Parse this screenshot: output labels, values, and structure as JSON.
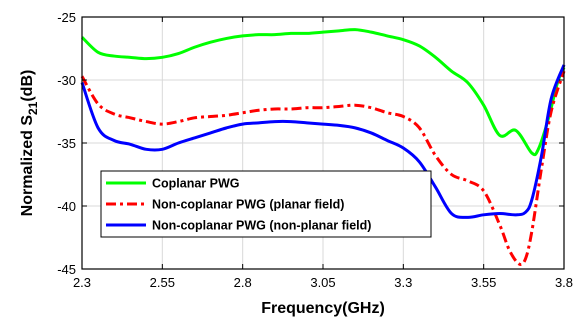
{
  "chart_data": {
    "type": "line",
    "title": "",
    "xlabel": "Frequency(GHz)",
    "ylabel": {
      "main": "Normalized S",
      "sub": "21",
      "tail": "(dB)"
    },
    "xlim": [
      2.3,
      3.8
    ],
    "ylim": [
      -45,
      -25
    ],
    "xticks": [
      "2.3",
      "2.55",
      "2.8",
      "3.05",
      "3.3",
      "3.55",
      "3.8"
    ],
    "yticks": [
      "-25",
      "-30",
      "-35",
      "-40",
      "-45"
    ],
    "grid": true,
    "legend_position": "lower-left",
    "series": [
      {
        "name": "Coplanar PWG",
        "color": "#00ff00",
        "style": "solid",
        "x": [
          2.3,
          2.35,
          2.4,
          2.45,
          2.5,
          2.55,
          2.6,
          2.65,
          2.7,
          2.75,
          2.8,
          2.85,
          2.9,
          2.95,
          3.0,
          3.05,
          3.1,
          3.15,
          3.2,
          3.25,
          3.3,
          3.35,
          3.4,
          3.45,
          3.5,
          3.55,
          3.6,
          3.65,
          3.7,
          3.72,
          3.75,
          3.78,
          3.8
        ],
        "y": [
          -26.6,
          -27.8,
          -28.1,
          -28.2,
          -28.3,
          -28.2,
          -27.9,
          -27.4,
          -27.0,
          -26.7,
          -26.5,
          -26.4,
          -26.4,
          -26.3,
          -26.3,
          -26.2,
          -26.1,
          -26.0,
          -26.2,
          -26.5,
          -26.8,
          -27.3,
          -28.2,
          -29.3,
          -30.2,
          -32.0,
          -34.4,
          -34.0,
          -35.8,
          -35.5,
          -33.2,
          -30.2,
          -29.0
        ]
      },
      {
        "name": "Non-coplanar PWG (planar field)",
        "color": "#ff0000",
        "style": "dashdot",
        "x": [
          2.3,
          2.35,
          2.4,
          2.45,
          2.5,
          2.55,
          2.6,
          2.65,
          2.7,
          2.75,
          2.8,
          2.85,
          2.9,
          2.95,
          3.0,
          3.05,
          3.1,
          3.15,
          3.2,
          3.25,
          3.3,
          3.35,
          3.4,
          3.45,
          3.5,
          3.55,
          3.6,
          3.63,
          3.66,
          3.68,
          3.7,
          3.73,
          3.76,
          3.8
        ],
        "y": [
          -29.7,
          -31.9,
          -32.7,
          -33.0,
          -33.3,
          -33.5,
          -33.3,
          -33.0,
          -32.9,
          -32.8,
          -32.6,
          -32.4,
          -32.3,
          -32.3,
          -32.2,
          -32.2,
          -32.1,
          -32.0,
          -32.2,
          -32.6,
          -32.9,
          -33.8,
          -36.0,
          -37.5,
          -38.0,
          -38.8,
          -41.5,
          -43.5,
          -44.6,
          -44.2,
          -42.0,
          -37.0,
          -32.5,
          -29.3
        ]
      },
      {
        "name": "Non-coplanar PWG (non-planar field)",
        "color": "#0000ff",
        "style": "solid",
        "x": [
          2.3,
          2.35,
          2.4,
          2.45,
          2.5,
          2.55,
          2.6,
          2.65,
          2.7,
          2.75,
          2.8,
          2.85,
          2.9,
          2.95,
          3.0,
          3.05,
          3.1,
          3.15,
          3.2,
          3.25,
          3.3,
          3.35,
          3.4,
          3.45,
          3.5,
          3.55,
          3.6,
          3.65,
          3.68,
          3.7,
          3.73,
          3.76,
          3.8
        ],
        "y": [
          -30.2,
          -33.8,
          -34.8,
          -35.1,
          -35.5,
          -35.5,
          -35.0,
          -34.6,
          -34.2,
          -33.8,
          -33.5,
          -33.4,
          -33.3,
          -33.3,
          -33.4,
          -33.5,
          -33.6,
          -33.8,
          -34.2,
          -34.8,
          -35.4,
          -36.5,
          -38.5,
          -40.6,
          -40.9,
          -40.7,
          -40.6,
          -40.7,
          -40.5,
          -39.5,
          -36.0,
          -31.5,
          -28.8
        ]
      }
    ]
  }
}
